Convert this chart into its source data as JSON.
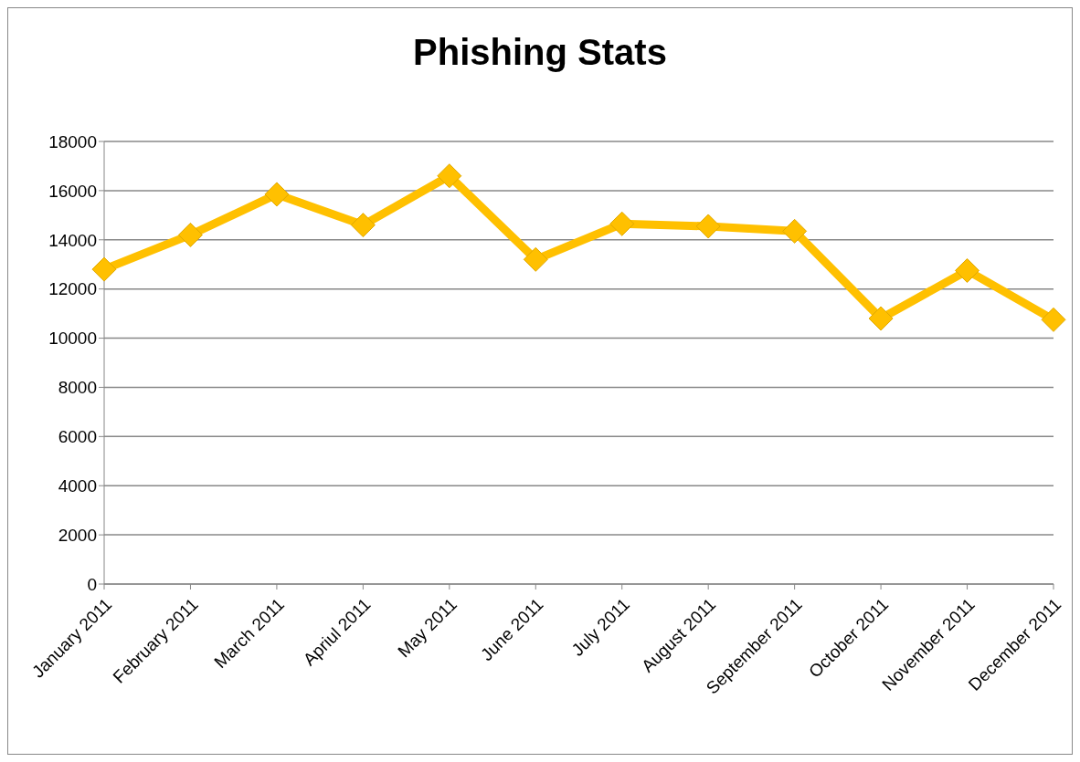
{
  "chart_data": {
    "type": "line",
    "title": "Phishing Stats",
    "categories": [
      "January 2011",
      "February 2011",
      "March 2011",
      "Apriul 2011",
      "May 2011",
      "June 2011",
      "July 2011",
      "August 2011",
      "September 2011",
      "October 2011",
      "November 2011",
      "December 2011"
    ],
    "series": [
      {
        "color": "#ffc000",
        "values": [
          12800,
          14200,
          15850,
          14600,
          16600,
          13200,
          14650,
          14550,
          14350,
          10800,
          12750,
          10750
        ]
      }
    ],
    "ylim": [
      0,
      18000
    ],
    "yticks": [
      0,
      2000,
      4000,
      6000,
      8000,
      10000,
      12000,
      14000,
      16000,
      18000
    ],
    "grid": "y",
    "legend": false,
    "marker": "diamond",
    "line_style": "solid"
  }
}
